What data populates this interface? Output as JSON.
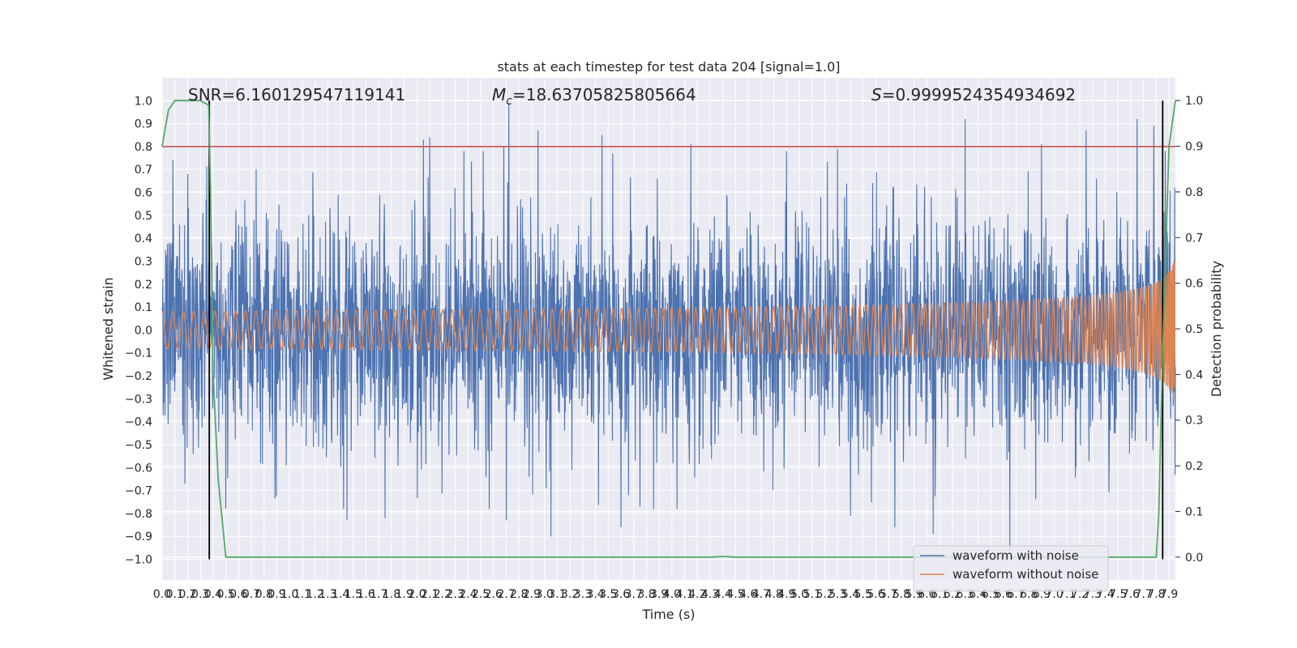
{
  "chart_data": {
    "type": "line",
    "title": "stats at each timestep for test data 204 [signal=1.0]",
    "xlabel": "Time (s)",
    "ylabel_left": "Whitened strain",
    "ylabel_right": "Detection probability",
    "xlim": [
      0.0,
      7.95
    ],
    "ylim_left": [
      -1.09,
      1.1
    ],
    "ylim_right": [
      -0.05,
      1.05
    ],
    "x_ticks": [
      0.0,
      0.1,
      0.2,
      0.3,
      0.4,
      0.5,
      0.6,
      0.7,
      0.8,
      0.9,
      1.0,
      1.1,
      1.2,
      1.3,
      1.4,
      1.5,
      1.6,
      1.7,
      1.8,
      1.9,
      2.0,
      2.1,
      2.2,
      2.3,
      2.4,
      2.5,
      2.6,
      2.7,
      2.8,
      2.9,
      3.0,
      3.1,
      3.2,
      3.3,
      3.4,
      3.5,
      3.6,
      3.7,
      3.8,
      3.9,
      4.0,
      4.1,
      4.2,
      4.3,
      4.4,
      4.5,
      4.6,
      4.7,
      4.8,
      4.9,
      5.0,
      5.1,
      5.2,
      5.3,
      5.4,
      5.5,
      5.6,
      5.7,
      5.8,
      5.9,
      6.0,
      6.1,
      6.2,
      6.3,
      6.4,
      6.5,
      6.6,
      6.7,
      6.8,
      6.9,
      7.0,
      7.1,
      7.2,
      7.3,
      7.4,
      7.5,
      7.6,
      7.7,
      7.8,
      7.9
    ],
    "x_tick_labels": [
      "0.0",
      "0.1",
      "0.2",
      "0.3",
      "0.4",
      "0.5",
      "0.6",
      "0.7",
      "0.8",
      "0.9",
      "1.0",
      "1.1",
      "1.2",
      "1.3",
      "1.4",
      "1.5",
      "1.6",
      "1.7",
      "1.8",
      "1.9",
      "2.0",
      "2.1",
      "2.2",
      "2.3",
      "2.4",
      "2.5",
      "2.6",
      "2.7",
      "2.8",
      "2.9",
      "3.0",
      "3.1",
      "3.2",
      "3.3",
      "3.4",
      "3.5",
      "3.6",
      "3.7",
      "3.8",
      "3.9",
      "4.0",
      "4.1",
      "4.2",
      "4.3",
      "4.4",
      "4.5",
      "4.6",
      "4.7",
      "4.8",
      "4.9",
      "5.0",
      "5.1",
      "5.2",
      "5.3",
      "5.4",
      "5.5",
      "5.6",
      "5.7",
      "5.8",
      "5.9",
      "6.0",
      "6.1",
      "6.2",
      "6.3",
      "6.4",
      "6.5",
      "6.6",
      "6.7",
      "6.8",
      "6.9",
      "7.0",
      "7.1",
      "7.2",
      "7.3",
      "7.4",
      "7.5",
      "7.6",
      "7.7",
      "7.8",
      "7.9"
    ],
    "y_ticks_left": [
      1.0,
      0.9,
      0.8,
      0.7,
      0.6,
      0.5,
      0.4,
      0.3,
      0.2,
      0.1,
      0.0,
      -0.1,
      -0.2,
      -0.3,
      -0.4,
      -0.5,
      -0.6,
      -0.7,
      -0.8,
      -0.9,
      -1.0
    ],
    "y_tick_labels_left": [
      "1.0",
      "0.9",
      "0.8",
      "0.7",
      "0.6",
      "0.5",
      "0.4",
      "0.3",
      "0.2",
      "0.1",
      "0.0",
      "−0.1",
      "−0.2",
      "−0.3",
      "−0.4",
      "−0.5",
      "−0.6",
      "−0.7",
      "−0.8",
      "−0.9",
      "−1.0"
    ],
    "y_ticks_right": [
      1.0,
      0.9,
      0.8,
      0.7,
      0.6,
      0.5,
      0.4,
      0.3,
      0.2,
      0.1,
      0.0
    ],
    "y_tick_labels_right": [
      "1.0",
      "0.9",
      "0.8",
      "0.7",
      "0.6",
      "0.5",
      "0.4",
      "0.3",
      "0.2",
      "0.1",
      "0.0"
    ],
    "grid": true,
    "annotations": {
      "snr": "SNR=6.160129547119141",
      "mc_symbol": "M",
      "mc_subscript": "c",
      "mc_value": "=18.63705825805664",
      "s_symbol": "S",
      "s_value": "=0.9999524354934692"
    },
    "threshold_line": {
      "y": 0.8,
      "color": "#c44e52"
    },
    "vertical_lines": [
      0.37,
      7.85
    ],
    "series": [
      {
        "name": "waveform with noise",
        "color": "#4c72b0",
        "type": "noise",
        "duration": 7.95,
        "typical_amplitude": 0.4,
        "peaks": [
          [
            0.2,
            0.68
          ],
          [
            0.37,
            0.88
          ],
          [
            0.5,
            -0.78
          ],
          [
            1.45,
            -0.83
          ],
          [
            1.75,
            -0.82
          ],
          [
            2.05,
            0.83
          ],
          [
            2.1,
            0.84
          ],
          [
            2.52,
            0.78
          ],
          [
            2.68,
            0.8
          ],
          [
            2.7,
            -0.83
          ],
          [
            2.72,
            0.99
          ],
          [
            2.95,
            0.87
          ],
          [
            3.05,
            -0.9
          ],
          [
            3.45,
            0.85
          ],
          [
            3.6,
            -0.86
          ],
          [
            3.75,
            -0.77
          ],
          [
            4.15,
            0.81
          ],
          [
            4.9,
            0.78
          ],
          [
            5.3,
            0.79
          ],
          [
            5.4,
            -0.81
          ],
          [
            5.75,
            -0.86
          ],
          [
            6.05,
            -0.89
          ],
          [
            6.3,
            0.92
          ],
          [
            6.65,
            -0.96
          ],
          [
            6.9,
            0.81
          ],
          [
            7.25,
            0.87
          ],
          [
            7.65,
            0.92
          ],
          [
            7.78,
            0.89
          ],
          [
            7.87,
            0.78
          ]
        ]
      },
      {
        "name": "waveform without noise",
        "color": "#dd8452",
        "type": "chirp",
        "t_merge": 7.95,
        "final_amplitude": 0.33,
        "start_frequency_hz": 12
      },
      {
        "name": "Detection probability",
        "color": "#55a868",
        "axis": "right",
        "x": [
          0.0,
          0.05,
          0.1,
          0.2,
          0.3,
          0.365,
          0.38,
          0.4,
          0.44,
          0.5,
          4.3,
          4.4,
          4.5,
          4.6,
          7.8,
          7.82,
          7.85,
          7.9,
          7.95
        ],
        "y": [
          0.9,
          0.98,
          1.0,
          1.0,
          1.0,
          0.99,
          0.8,
          0.4,
          0.17,
          0.0,
          0.0,
          0.0015,
          0.0,
          0.0,
          0.0,
          0.1,
          0.45,
          0.9,
          1.0
        ]
      }
    ],
    "legend": {
      "location": "lower right",
      "entries": [
        "waveform with noise",
        "waveform without noise"
      ]
    }
  }
}
